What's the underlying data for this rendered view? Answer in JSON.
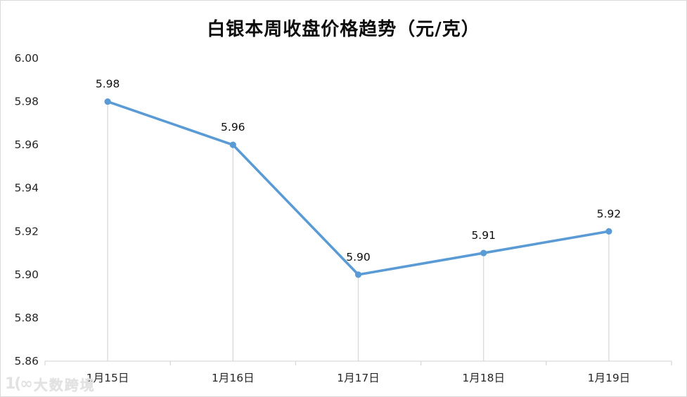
{
  "chart_data": {
    "type": "line",
    "title": "白银本周收盘价格趋势（元/克）",
    "categories": [
      "1月15日",
      "1月16日",
      "1月17日",
      "1月18日",
      "1月19日"
    ],
    "values": [
      5.98,
      5.96,
      5.9,
      5.91,
      5.92
    ],
    "data_labels": [
      "5.98",
      "5.96",
      "5.90",
      "5.91",
      "5.92"
    ],
    "y_ticks": [
      "6.00",
      "5.98",
      "5.96",
      "5.94",
      "5.92",
      "5.90",
      "5.88",
      "5.86"
    ],
    "ylim": [
      5.86,
      6.0
    ],
    "xlabel": "",
    "ylabel": "",
    "grid": false,
    "drop_lines": true,
    "legend_position": "none",
    "line_color": "#5b9bd5",
    "marker_color": "#5b9bd5",
    "axis_line_color": "#d9d9d9",
    "drop_line_color": "#d9d9d9",
    "tick_label_color": "#262626",
    "data_label_color": "#0d0d0d"
  },
  "watermark": {
    "logo_glyph": "1(∞",
    "text": "大数跨境"
  }
}
